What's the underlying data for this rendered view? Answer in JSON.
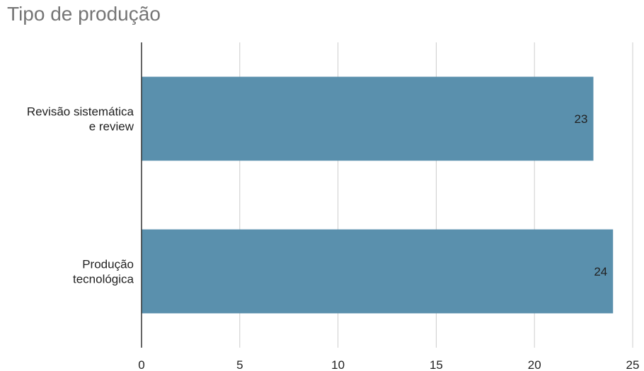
{
  "chart_data": {
    "type": "bar",
    "orientation": "horizontal",
    "title": "Tipo de produção",
    "categories": [
      [
        "Revisão sistemática",
        "e review"
      ],
      [
        "Produção",
        "tecnológica"
      ]
    ],
    "values": [
      23,
      24
    ],
    "data_labels": [
      "23",
      "24"
    ],
    "xlim": [
      0,
      25
    ],
    "xticks": [
      0,
      5,
      10,
      15,
      20,
      25
    ],
    "xlabel": "",
    "ylabel": "",
    "grid": true,
    "legend": "none",
    "colors": {
      "bar": "#5a90ad",
      "grid": "#cccccc",
      "axis": "#333333"
    }
  }
}
